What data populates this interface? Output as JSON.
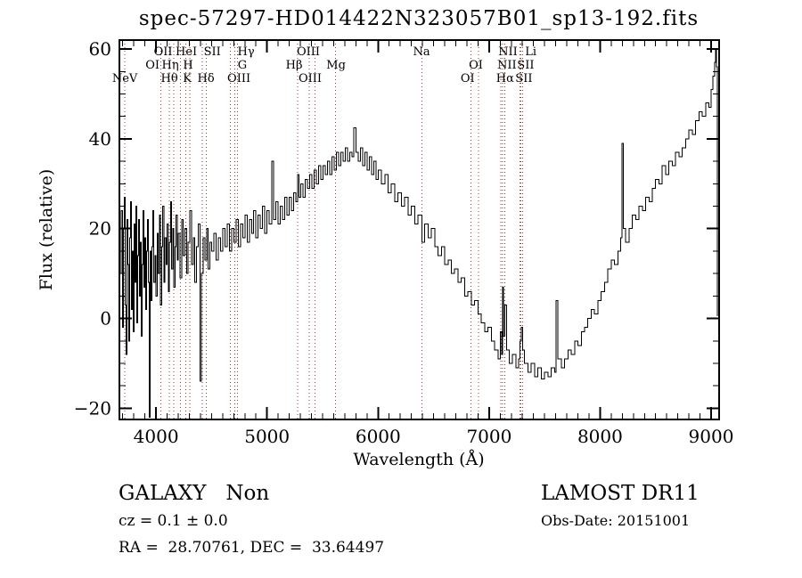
{
  "title": "spec-57297-HD014422N323057B01_sp13-192.fits",
  "footer": {
    "classification": "GALAXY   Non",
    "cz": "cz = 0.1 ± 0.0",
    "radec": "RA =  28.70761, DEC =  33.64497",
    "survey": "LAMOST DR11",
    "obs_date": "Obs-Date: 20151001"
  },
  "chart_data": {
    "type": "line",
    "title": "spec-57297-HD014422N323057B01_sp13-192.fits",
    "xlabel": "Wavelength (Å)",
    "ylabel": "Flux (relative)",
    "xlim": [
      3670,
      9072
    ],
    "ylim": [
      -22.5,
      62
    ],
    "x_major_ticks": [
      4000,
      5000,
      6000,
      7000,
      8000,
      9000
    ],
    "x_minor_step": 100,
    "y_major_ticks": [
      -20,
      0,
      20,
      40,
      60
    ],
    "y_minor_step": 5,
    "grid": false,
    "frame_color": "#000000",
    "marker_line_color": "#993333",
    "spectral_line_markers": [
      3717,
      4044,
      4121,
      4161,
      4220,
      4267,
      4305,
      4418,
      4451,
      4671,
      4709,
      4734,
      5274,
      5381,
      5433,
      5615,
      6394,
      6836,
      6905,
      7105,
      7121,
      7143,
      7278,
      7287,
      7303
    ],
    "spectral_line_labels": [
      {
        "text": "OII",
        "row": 1,
        "lambda": 4064
      },
      {
        "text": "HeI",
        "row": 1,
        "lambda": 4273
      },
      {
        "text": "SII",
        "row": 1,
        "lambda": 4506
      },
      {
        "text": "Hγ",
        "row": 1,
        "lambda": 4811
      },
      {
        "text": "OIII",
        "row": 1,
        "lambda": 5372
      },
      {
        "text": "Na",
        "row": 1,
        "lambda": 6392
      },
      {
        "text": "NII",
        "row": 1,
        "lambda": 7170
      },
      {
        "text": "Li",
        "row": 1,
        "lambda": 7375
      },
      {
        "text": "OI",
        "row": 2,
        "lambda": 3968
      },
      {
        "text": "Hη",
        "row": 2,
        "lambda": 4128
      },
      {
        "text": "H",
        "row": 2,
        "lambda": 4289
      },
      {
        "text": "G",
        "row": 2,
        "lambda": 4778
      },
      {
        "text": "Hβ",
        "row": 2,
        "lambda": 5244
      },
      {
        "text": "Mg",
        "row": 2,
        "lambda": 5621
      },
      {
        "text": "OI",
        "row": 2,
        "lambda": 6881
      },
      {
        "text": "NII",
        "row": 2,
        "lambda": 7160
      },
      {
        "text": "SII",
        "row": 2,
        "lambda": 7329
      },
      {
        "text": "NeV",
        "row": 3,
        "lambda": 3719
      },
      {
        "text": "Hθ",
        "row": 3,
        "lambda": 4120
      },
      {
        "text": "K",
        "row": 3,
        "lambda": 4281
      },
      {
        "text": "Hδ",
        "row": 3,
        "lambda": 4449
      },
      {
        "text": "OIII",
        "row": 3,
        "lambda": 4746
      },
      {
        "text": "OIII",
        "row": 3,
        "lambda": 5388
      },
      {
        "text": "OI",
        "row": 3,
        "lambda": 6807
      },
      {
        "text": "Hα",
        "row": 3,
        "lambda": 7144
      },
      {
        "text": "SII",
        "row": 3,
        "lambda": 7313
      }
    ],
    "series": [
      {
        "name": "spectrum",
        "color": "#000000",
        "points": [
          [
            3678,
            10
          ],
          [
            3688,
            24
          ],
          [
            3698,
            -2
          ],
          [
            3708,
            20
          ],
          [
            3716,
            27
          ],
          [
            3724,
            3
          ],
          [
            3732,
            -8
          ],
          [
            3740,
            22
          ],
          [
            3748,
            12
          ],
          [
            3756,
            -5
          ],
          [
            3764,
            18
          ],
          [
            3772,
            26
          ],
          [
            3780,
            2
          ],
          [
            3788,
            15
          ],
          [
            3796,
            -3
          ],
          [
            3804,
            21
          ],
          [
            3812,
            8
          ],
          [
            3820,
            25
          ],
          [
            3828,
            -1
          ],
          [
            3836,
            14
          ],
          [
            3844,
            22
          ],
          [
            3852,
            5
          ],
          [
            3860,
            17
          ],
          [
            3868,
            -4
          ],
          [
            3876,
            12
          ],
          [
            3884,
            24
          ],
          [
            3892,
            7
          ],
          [
            3900,
            18
          ],
          [
            3908,
            2
          ],
          [
            3916,
            15
          ],
          [
            3924,
            22
          ],
          [
            3932,
            8
          ],
          [
            3940,
            -22
          ],
          [
            3948,
            15
          ],
          [
            3956,
            4
          ],
          [
            3964,
            16
          ],
          [
            3972,
            24
          ],
          [
            3980,
            8
          ],
          [
            3990,
            14
          ],
          [
            4000,
            5
          ],
          [
            4010,
            19
          ],
          [
            4020,
            10
          ],
          [
            4030,
            23
          ],
          [
            4040,
            3
          ],
          [
            4050,
            16
          ],
          [
            4060,
            25
          ],
          [
            4070,
            8
          ],
          [
            4080,
            18
          ],
          [
            4090,
            12
          ],
          [
            4100,
            21
          ],
          [
            4110,
            6
          ],
          [
            4120,
            17
          ],
          [
            4130,
            26
          ],
          [
            4140,
            11
          ],
          [
            4150,
            20
          ],
          [
            4160,
            7
          ],
          [
            4170,
            16
          ],
          [
            4180,
            23
          ],
          [
            4190,
            13
          ],
          [
            4200,
            19
          ],
          [
            4215,
            9
          ],
          [
            4230,
            22
          ],
          [
            4245,
            14
          ],
          [
            4260,
            20
          ],
          [
            4275,
            10
          ],
          [
            4290,
            17
          ],
          [
            4305,
            24
          ],
          [
            4320,
            12
          ],
          [
            4335,
            18
          ],
          [
            4350,
            8
          ],
          [
            4365,
            16
          ],
          [
            4380,
            21
          ],
          [
            4395,
            -14
          ],
          [
            4410,
            10
          ],
          [
            4425,
            18
          ],
          [
            4440,
            13
          ],
          [
            4455,
            20
          ],
          [
            4470,
            11
          ],
          [
            4485,
            17
          ],
          [
            4500,
            15
          ],
          [
            4520,
            19
          ],
          [
            4540,
            13
          ],
          [
            4560,
            18
          ],
          [
            4580,
            15
          ],
          [
            4600,
            20
          ],
          [
            4620,
            16
          ],
          [
            4640,
            21
          ],
          [
            4660,
            15
          ],
          [
            4680,
            20
          ],
          [
            4700,
            17
          ],
          [
            4720,
            22
          ],
          [
            4740,
            16
          ],
          [
            4760,
            21
          ],
          [
            4780,
            18
          ],
          [
            4800,
            23
          ],
          [
            4820,
            17
          ],
          [
            4840,
            22
          ],
          [
            4860,
            19
          ],
          [
            4880,
            24
          ],
          [
            4900,
            18
          ],
          [
            4920,
            23
          ],
          [
            4940,
            20
          ],
          [
            4960,
            25
          ],
          [
            4980,
            19
          ],
          [
            5000,
            24
          ],
          [
            5020,
            21
          ],
          [
            5043,
            35
          ],
          [
            5060,
            22
          ],
          [
            5080,
            26
          ],
          [
            5100,
            21
          ],
          [
            5120,
            25
          ],
          [
            5140,
            22
          ],
          [
            5160,
            27
          ],
          [
            5180,
            23
          ],
          [
            5200,
            27
          ],
          [
            5220,
            24
          ],
          [
            5240,
            28
          ],
          [
            5260,
            26
          ],
          [
            5274,
            32
          ],
          [
            5288,
            27
          ],
          [
            5305,
            30
          ],
          [
            5325,
            27
          ],
          [
            5345,
            31
          ],
          [
            5365,
            29
          ],
          [
            5385,
            32
          ],
          [
            5405,
            29
          ],
          [
            5425,
            33
          ],
          [
            5445,
            30
          ],
          [
            5465,
            34
          ],
          [
            5485,
            31
          ],
          [
            5505,
            34
          ],
          [
            5525,
            32
          ],
          [
            5545,
            35
          ],
          [
            5565,
            32
          ],
          [
            5585,
            36
          ],
          [
            5605,
            33
          ],
          [
            5625,
            37
          ],
          [
            5645,
            34
          ],
          [
            5665,
            37
          ],
          [
            5685,
            35
          ],
          [
            5705,
            38
          ],
          [
            5725,
            35
          ],
          [
            5745,
            37
          ],
          [
            5765,
            36
          ],
          [
            5782,
            42.5
          ],
          [
            5800,
            37
          ],
          [
            5820,
            35
          ],
          [
            5840,
            38
          ],
          [
            5860,
            34
          ],
          [
            5880,
            37
          ],
          [
            5900,
            33
          ],
          [
            5920,
            36
          ],
          [
            5940,
            32
          ],
          [
            5960,
            35
          ],
          [
            5980,
            31
          ],
          [
            6000,
            33
          ],
          [
            6030,
            30
          ],
          [
            6060,
            32
          ],
          [
            6090,
            28
          ],
          [
            6120,
            30
          ],
          [
            6150,
            26
          ],
          [
            6180,
            28
          ],
          [
            6210,
            25
          ],
          [
            6240,
            27
          ],
          [
            6270,
            23
          ],
          [
            6300,
            25
          ],
          [
            6330,
            21
          ],
          [
            6360,
            23
          ],
          [
            6394,
            17
          ],
          [
            6420,
            21
          ],
          [
            6450,
            18
          ],
          [
            6480,
            20
          ],
          [
            6510,
            16
          ],
          [
            6540,
            14
          ],
          [
            6570,
            16
          ],
          [
            6600,
            12
          ],
          [
            6630,
            13
          ],
          [
            6660,
            10
          ],
          [
            6690,
            11
          ],
          [
            6720,
            8
          ],
          [
            6750,
            9
          ],
          [
            6780,
            5
          ],
          [
            6810,
            6
          ],
          [
            6840,
            3
          ],
          [
            6870,
            4
          ],
          [
            6900,
            1
          ],
          [
            6930,
            -1
          ],
          [
            6960,
            -3
          ],
          [
            6990,
            -2
          ],
          [
            7020,
            -5
          ],
          [
            7050,
            -7
          ],
          [
            7080,
            -9
          ],
          [
            7100,
            -3
          ],
          [
            7112,
            -8
          ],
          [
            7121,
            7
          ],
          [
            7131,
            -4
          ],
          [
            7143,
            3
          ],
          [
            7156,
            -7
          ],
          [
            7180,
            -10
          ],
          [
            7210,
            -8
          ],
          [
            7240,
            -11
          ],
          [
            7264,
            -9
          ],
          [
            7278,
            -5
          ],
          [
            7291,
            -2
          ],
          [
            7303,
            -7
          ],
          [
            7320,
            -10
          ],
          [
            7350,
            -12
          ],
          [
            7380,
            -10
          ],
          [
            7410,
            -13
          ],
          [
            7440,
            -11
          ],
          [
            7470,
            -13.5
          ],
          [
            7500,
            -12
          ],
          [
            7530,
            -13
          ],
          [
            7560,
            -11
          ],
          [
            7590,
            -12
          ],
          [
            7604,
            4
          ],
          [
            7620,
            -9
          ],
          [
            7650,
            -11
          ],
          [
            7680,
            -9
          ],
          [
            7710,
            -7
          ],
          [
            7740,
            -8
          ],
          [
            7770,
            -5
          ],
          [
            7800,
            -6
          ],
          [
            7830,
            -3
          ],
          [
            7860,
            -2
          ],
          [
            7890,
            0
          ],
          [
            7920,
            2
          ],
          [
            7950,
            1
          ],
          [
            7980,
            4
          ],
          [
            8010,
            6
          ],
          [
            8040,
            8
          ],
          [
            8070,
            11
          ],
          [
            8100,
            13
          ],
          [
            8130,
            12
          ],
          [
            8160,
            15
          ],
          [
            8185,
            18
          ],
          [
            8197,
            39
          ],
          [
            8210,
            20
          ],
          [
            8230,
            17
          ],
          [
            8260,
            20
          ],
          [
            8290,
            23
          ],
          [
            8320,
            22
          ],
          [
            8350,
            25
          ],
          [
            8380,
            24
          ],
          [
            8410,
            27
          ],
          [
            8440,
            26
          ],
          [
            8470,
            29
          ],
          [
            8500,
            31
          ],
          [
            8530,
            30
          ],
          [
            8560,
            34
          ],
          [
            8590,
            32
          ],
          [
            8620,
            35
          ],
          [
            8650,
            34
          ],
          [
            8680,
            37
          ],
          [
            8710,
            36
          ],
          [
            8740,
            38
          ],
          [
            8770,
            40
          ],
          [
            8800,
            42
          ],
          [
            8830,
            41
          ],
          [
            8860,
            44
          ],
          [
            8890,
            46
          ],
          [
            8920,
            45
          ],
          [
            8950,
            48
          ],
          [
            8980,
            47
          ],
          [
            9000,
            51
          ],
          [
            9015,
            54
          ],
          [
            9030,
            57
          ],
          [
            9040,
            60
          ],
          [
            9048,
            56
          ],
          [
            9054,
            0.5
          ]
        ]
      }
    ]
  }
}
